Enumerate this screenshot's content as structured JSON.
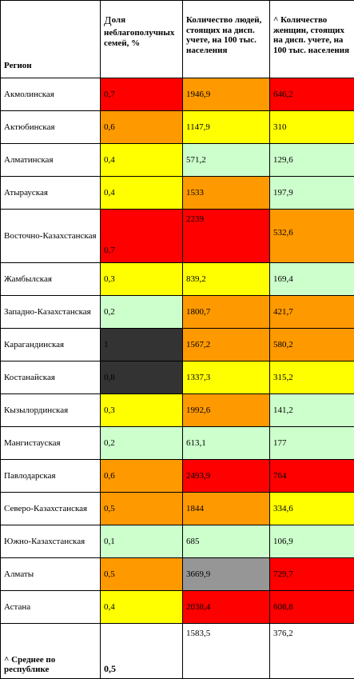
{
  "headers": {
    "region": "Регион",
    "share": "Доля неблагополучных семей, %",
    "share_prefix": "Д",
    "share_rest": "оля неблагополучных семей, %",
    "people": "Количество людей, стоящих на дисп. учете, на 100 тыс. населения",
    "women": "^ Количество женщин, стоящих на дисп. учете, на 100 тыс. населения"
  },
  "rows": [
    {
      "region": "Акмолинская",
      "share": "0,7",
      "people": "1946,9",
      "women": "646,2"
    },
    {
      "region": "Актюбинская",
      "share": "0,6",
      "people": "1147,9",
      "women": "310"
    },
    {
      "region": "Алматинская",
      "share": "0,4",
      "people": "571,2",
      "women": "129,6"
    },
    {
      "region": "Атырауская",
      "share": "0,4",
      "people": "1533",
      "women": "197,9"
    },
    {
      "region": "Восточно-Казахстанская",
      "share": "0,7",
      "people": "2239",
      "women": "532,6"
    },
    {
      "region": "Жамбылская",
      "share": "0,3",
      "people": "839,2",
      "women": "169,4"
    },
    {
      "region": "Западно-Казахстанская",
      "share": "0,2",
      "people": "1800,7",
      "women": "421,7"
    },
    {
      "region": "Карагандинская",
      "share": "1",
      "people": "1567,2",
      "women": "580,2"
    },
    {
      "region": "Костанайская",
      "share": "0,8",
      "people": "1337,3",
      "women": "315,2"
    },
    {
      "region": "Кызылординская",
      "share": "0,3",
      "people": "1992,6",
      "women": "141,2"
    },
    {
      "region": "Мангистауская",
      "share": "0,2",
      "people": "613,1",
      "women": "177"
    },
    {
      "region": "Павлодарская",
      "share": "0,6",
      "people": "2493,9",
      "women": "764"
    },
    {
      "region": "Северо-Казахстанская",
      "share": "0,5",
      "people": "1844",
      "women": "334,6"
    },
    {
      "region": "Южно-Казахстанская",
      "share": "0,1",
      "people": "685",
      "women": "106,9"
    },
    {
      "region": "Алматы",
      "share": "0,5",
      "people": "3669,9",
      "women": "729,7"
    },
    {
      "region": "Астана",
      "share": "0,4",
      "people": "2038,4",
      "women": "608,8"
    }
  ],
  "footer": {
    "label": "^ Среднее по республике",
    "share": "0,5",
    "people": "1583,5",
    "women": "376,2"
  },
  "colors": {
    "red": "#ff0000",
    "orange": "#ff9900",
    "yellow": "#ffff00",
    "green": "#ccffcc",
    "black": "#333333",
    "gray": "#969696"
  }
}
